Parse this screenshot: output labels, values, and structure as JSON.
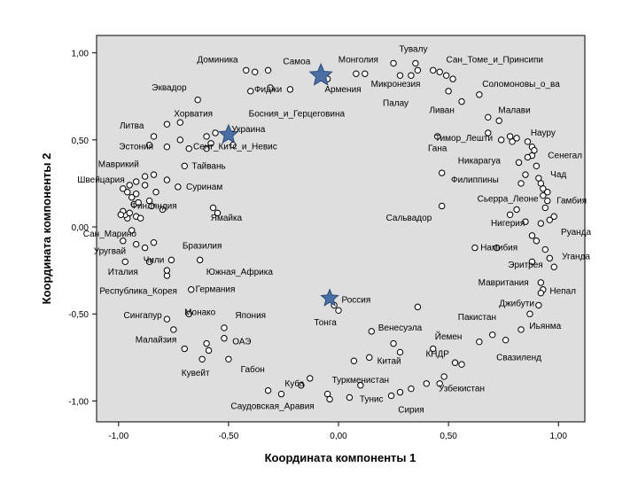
{
  "chart_data": {
    "type": "scatter",
    "title": "",
    "xlabel": "Координата компоненты 1",
    "ylabel": "Координата компоненты 2",
    "xlim": [
      -1.1,
      1.12
    ],
    "ylim": [
      -1.12,
      1.1
    ],
    "xticks": [
      -1.0,
      -0.5,
      0.0,
      0.5,
      1.0
    ],
    "yticks": [
      -1.0,
      -0.5,
      0.0,
      0.5,
      1.0
    ],
    "xtick_labels": [
      "-1,00",
      "-0,50",
      "0,00",
      "0,50",
      "1,00"
    ],
    "ytick_labels": [
      "-1,00",
      "-0,50",
      "0,00",
      "0,50",
      "1,00"
    ],
    "grid": false,
    "colors": {
      "plot_background": "#dedede",
      "marker_stroke": "#000000",
      "marker_fill": "#ffffff",
      "star_fill": "#4a6fa5",
      "star_stroke": "#2b4a78"
    },
    "highlighted": [
      {
        "label": "Армения",
        "x": -0.08,
        "y": 0.87
      },
      {
        "label": "Украина",
        "x": -0.5,
        "y": 0.53
      },
      {
        "label": "Россия",
        "x": -0.04,
        "y": -0.41
      }
    ],
    "labels": [
      {
        "text": "Тувалу",
        "x": 0.34,
        "y": 1.02
      },
      {
        "text": "Монголия",
        "x": 0.09,
        "y": 0.96
      },
      {
        "text": "Самоа",
        "x": -0.19,
        "y": 0.95
      },
      {
        "text": "Доминика",
        "x": -0.55,
        "y": 0.96
      },
      {
        "text": "Сан_Томе_и_Принсипи",
        "x": 0.71,
        "y": 0.96
      },
      {
        "text": "Микронезия",
        "x": 0.26,
        "y": 0.82
      },
      {
        "text": "Соломоновы_о_ва",
        "x": 0.83,
        "y": 0.82
      },
      {
        "text": "Эквадор",
        "x": -0.77,
        "y": 0.8
      },
      {
        "text": "Фиджи",
        "x": -0.32,
        "y": 0.79
      },
      {
        "text": "Армения",
        "x": 0.02,
        "y": 0.79
      },
      {
        "text": "Палау",
        "x": 0.26,
        "y": 0.71
      },
      {
        "text": "Хорватия",
        "x": -0.66,
        "y": 0.65
      },
      {
        "text": "Босния_и_Герцеговина",
        "x": -0.19,
        "y": 0.65
      },
      {
        "text": "Ливан",
        "x": 0.47,
        "y": 0.67
      },
      {
        "text": "Малави",
        "x": 0.8,
        "y": 0.67
      },
      {
        "text": "Литва",
        "x": -0.94,
        "y": 0.58
      },
      {
        "text": "Украина",
        "x": -0.41,
        "y": 0.56
      },
      {
        "text": "Науру",
        "x": 0.93,
        "y": 0.54
      },
      {
        "text": "Тимор_Лешти",
        "x": 0.57,
        "y": 0.51
      },
      {
        "text": "Эстония",
        "x": -0.92,
        "y": 0.46
      },
      {
        "text": "Сент_Китс_и_Невис",
        "x": -0.47,
        "y": 0.46
      },
      {
        "text": "Гана",
        "x": 0.45,
        "y": 0.45
      },
      {
        "text": "Сенегал",
        "x": 1.03,
        "y": 0.41
      },
      {
        "text": "Никарагуа",
        "x": 0.64,
        "y": 0.38
      },
      {
        "text": "Маврикий",
        "x": -1.0,
        "y": 0.36
      },
      {
        "text": "Тайвань",
        "x": -0.59,
        "y": 0.35
      },
      {
        "text": "Чад",
        "x": 1.0,
        "y": 0.3
      },
      {
        "text": "Швейцария",
        "x": -1.08,
        "y": 0.27
      },
      {
        "text": "Филиппины",
        "x": 0.62,
        "y": 0.27
      },
      {
        "text": "Суринам",
        "x": -0.61,
        "y": 0.23
      },
      {
        "text": "Сьерра_Леоне",
        "x": 0.77,
        "y": 0.16
      },
      {
        "text": "Гамбия",
        "x": 1.06,
        "y": 0.15
      },
      {
        "text": "Финляндия",
        "x": -0.84,
        "y": 0.12
      },
      {
        "text": "Ямайка",
        "x": -0.51,
        "y": 0.05
      },
      {
        "text": "Сальвадор",
        "x": 0.32,
        "y": 0.05
      },
      {
        "text": "Нигерия",
        "x": 0.77,
        "y": 0.02
      },
      {
        "text": "Руанда",
        "x": 1.08,
        "y": -0.03
      },
      {
        "text": "Сан_Марино",
        "x": -1.04,
        "y": -0.04
      },
      {
        "text": "Бразилия",
        "x": -0.62,
        "y": -0.11
      },
      {
        "text": "Намибия",
        "x": 0.73,
        "y": -0.12
      },
      {
        "text": "Уругвай",
        "x": -1.04,
        "y": -0.14
      },
      {
        "text": "Чили",
        "x": -0.84,
        "y": -0.19
      },
      {
        "text": "Уганда",
        "x": 1.08,
        "y": -0.17
      },
      {
        "text": "Эритрея",
        "x": 0.85,
        "y": -0.22
      },
      {
        "text": "Италия",
        "x": -0.98,
        "y": -0.26
      },
      {
        "text": "Южная_Африка",
        "x": -0.45,
        "y": -0.26
      },
      {
        "text": "Мавритания",
        "x": 0.75,
        "y": -0.32
      },
      {
        "text": "Республика_Корея",
        "x": -0.91,
        "y": -0.37
      },
      {
        "text": "Германия",
        "x": -0.56,
        "y": -0.36
      },
      {
        "text": "Непал",
        "x": 1.02,
        "y": -0.37
      },
      {
        "text": "Россия",
        "x": 0.08,
        "y": -0.42
      },
      {
        "text": "Джибути",
        "x": 0.81,
        "y": -0.44
      },
      {
        "text": "Монако",
        "x": -0.63,
        "y": -0.49
      },
      {
        "text": "Сингапур",
        "x": -0.89,
        "y": -0.51
      },
      {
        "text": "Япония",
        "x": -0.4,
        "y": -0.51
      },
      {
        "text": "Пакистан",
        "x": 0.63,
        "y": -0.52
      },
      {
        "text": "Тонга",
        "x": -0.06,
        "y": -0.55
      },
      {
        "text": "Венесуэла",
        "x": 0.28,
        "y": -0.58
      },
      {
        "text": "Иьянма",
        "x": 0.94,
        "y": -0.57
      },
      {
        "text": "Малайзия",
        "x": -0.83,
        "y": -0.65
      },
      {
        "text": "ОАЭ",
        "x": -0.44,
        "y": -0.66
      },
      {
        "text": "Йемен",
        "x": 0.5,
        "y": -0.63
      },
      {
        "text": "КНДР",
        "x": 0.45,
        "y": -0.73
      },
      {
        "text": "Китай",
        "x": 0.23,
        "y": -0.77
      },
      {
        "text": "Свазиленд",
        "x": 0.82,
        "y": -0.75
      },
      {
        "text": "Кувейт",
        "x": -0.65,
        "y": -0.84
      },
      {
        "text": "Габон",
        "x": -0.39,
        "y": -0.82
      },
      {
        "text": "Туркменистан",
        "x": 0.1,
        "y": -0.88
      },
      {
        "text": "Узбекистан",
        "x": 0.56,
        "y": -0.93
      },
      {
        "text": "Куба",
        "x": -0.2,
        "y": -0.9
      },
      {
        "text": "Тунис",
        "x": 0.15,
        "y": -0.99
      },
      {
        "text": "Саудовская_Аравия",
        "x": -0.3,
        "y": -1.03
      },
      {
        "text": "Сирия",
        "x": 0.33,
        "y": -1.05
      }
    ],
    "points": [
      [
        -0.42,
        0.9
      ],
      [
        -0.38,
        0.89
      ],
      [
        -0.4,
        0.78
      ],
      [
        -0.22,
        0.79
      ],
      [
        -0.32,
        0.9
      ],
      [
        -0.05,
        0.85
      ],
      [
        0.08,
        0.88
      ],
      [
        0.12,
        0.88
      ],
      [
        0.25,
        0.94
      ],
      [
        0.35,
        0.94
      ],
      [
        0.36,
        0.9
      ],
      [
        0.33,
        0.87
      ],
      [
        0.28,
        0.87
      ],
      [
        0.43,
        0.9
      ],
      [
        0.46,
        0.89
      ],
      [
        0.49,
        0.87
      ],
      [
        0.52,
        0.85
      ],
      [
        0.5,
        0.78
      ],
      [
        0.56,
        0.72
      ],
      [
        0.64,
        0.76
      ],
      [
        0.68,
        0.63
      ],
      [
        0.73,
        0.61
      ],
      [
        0.68,
        0.54
      ],
      [
        0.74,
        0.5
      ],
      [
        0.79,
        0.49
      ],
      [
        0.86,
        0.49
      ],
      [
        0.88,
        0.46
      ],
      [
        0.89,
        0.44
      ],
      [
        0.88,
        0.41
      ],
      [
        0.86,
        0.4
      ],
      [
        0.9,
        0.35
      ],
      [
        0.91,
        0.28
      ],
      [
        0.92,
        0.25
      ],
      [
        0.93,
        0.22
      ],
      [
        0.95,
        0.2
      ],
      [
        0.93,
        0.18
      ],
      [
        0.95,
        0.15
      ],
      [
        0.94,
        0.11
      ],
      [
        0.98,
        0.06
      ],
      [
        0.96,
        0.04
      ],
      [
        0.92,
        0.02
      ],
      [
        0.9,
        -0.08
      ],
      [
        0.94,
        -0.13
      ],
      [
        0.96,
        -0.18
      ],
      [
        0.98,
        -0.23
      ],
      [
        0.92,
        -0.32
      ],
      [
        0.93,
        -0.36
      ],
      [
        0.92,
        -0.38
      ],
      [
        0.91,
        -0.45
      ],
      [
        0.87,
        -0.5
      ],
      [
        0.83,
        -0.59
      ],
      [
        0.76,
        -0.65
      ],
      [
        0.7,
        -0.62
      ],
      [
        0.64,
        -0.66
      ],
      [
        0.56,
        -0.79
      ],
      [
        0.53,
        -0.78
      ],
      [
        0.48,
        -0.86
      ],
      [
        0.46,
        -0.9
      ],
      [
        0.4,
        -0.9
      ],
      [
        0.33,
        -0.93
      ],
      [
        0.28,
        -0.95
      ],
      [
        0.24,
        -0.97
      ],
      [
        0.1,
        -0.91
      ],
      [
        0.05,
        -0.98
      ],
      [
        -0.05,
        -0.96
      ],
      [
        -0.04,
        -0.99
      ],
      [
        -0.13,
        -0.87
      ],
      [
        -0.17,
        -0.91
      ],
      [
        -0.26,
        -0.96
      ],
      [
        -0.32,
        -0.94
      ],
      [
        -0.5,
        -0.76
      ],
      [
        -0.59,
        -0.71
      ],
      [
        -0.62,
        -0.76
      ],
      [
        -0.6,
        -0.67
      ],
      [
        -0.52,
        -0.64
      ],
      [
        -0.52,
        -0.58
      ],
      [
        -0.7,
        -0.7
      ],
      [
        -0.75,
        -0.59
      ],
      [
        -0.78,
        -0.53
      ],
      [
        -0.68,
        -0.5
      ],
      [
        -0.67,
        -0.36
      ],
      [
        -0.78,
        -0.28
      ],
      [
        -0.78,
        -0.25
      ],
      [
        -0.76,
        -0.19
      ],
      [
        -0.63,
        -0.19
      ],
      [
        -0.86,
        -0.2
      ],
      [
        -0.88,
        -0.12
      ],
      [
        -0.97,
        -0.2
      ],
      [
        -0.98,
        -0.08
      ],
      [
        -0.92,
        -0.1
      ],
      [
        -0.84,
        -0.09
      ],
      [
        -0.94,
        -0.02
      ],
      [
        -0.96,
        0.05
      ],
      [
        -0.97,
        0.07
      ],
      [
        -0.98,
        0.09
      ],
      [
        -0.99,
        0.07
      ],
      [
        -0.95,
        0.08
      ],
      [
        -0.92,
        0.06
      ],
      [
        -0.9,
        0.05
      ],
      [
        -0.93,
        0.13
      ],
      [
        -0.94,
        0.17
      ],
      [
        -0.92,
        0.19
      ],
      [
        -0.96,
        0.2
      ],
      [
        -0.98,
        0.22
      ],
      [
        -0.95,
        0.24
      ],
      [
        -0.92,
        0.26
      ],
      [
        -0.88,
        0.29
      ],
      [
        -0.84,
        0.3
      ],
      [
        -0.88,
        0.24
      ],
      [
        -0.83,
        0.2
      ],
      [
        -0.86,
        0.15
      ],
      [
        -0.91,
        0.14
      ],
      [
        -0.73,
        0.23
      ],
      [
        -0.78,
        0.27
      ],
      [
        -0.7,
        0.35
      ],
      [
        -0.78,
        0.46
      ],
      [
        -0.72,
        0.5
      ],
      [
        -0.68,
        0.45
      ],
      [
        -0.84,
        0.52
      ],
      [
        -0.86,
        0.47
      ],
      [
        -0.78,
        0.59
      ],
      [
        -0.72,
        0.6
      ],
      [
        -0.64,
        0.73
      ],
      [
        -0.56,
        0.54
      ],
      [
        -0.48,
        0.47
      ],
      [
        -0.58,
        0.48
      ],
      [
        -0.6,
        0.52
      ],
      [
        -0.6,
        0.45
      ],
      [
        -0.55,
        0.08
      ],
      [
        -0.57,
        0.11
      ],
      [
        -0.8,
        0.1
      ],
      [
        -0.85,
        0.12
      ],
      [
        0.45,
        0.52
      ],
      [
        0.47,
        0.31
      ],
      [
        0.47,
        0.12
      ],
      [
        0.78,
        0.52
      ],
      [
        0.81,
        0.51
      ],
      [
        0.82,
        0.37
      ],
      [
        0.85,
        0.3
      ],
      [
        0.83,
        0.25
      ],
      [
        0.81,
        0.1
      ],
      [
        0.78,
        0.07
      ],
      [
        0.85,
        0.03
      ],
      [
        0.88,
        -0.05
      ],
      [
        0.88,
        -0.2
      ],
      [
        0.72,
        -0.12
      ],
      [
        0.62,
        -0.12
      ],
      [
        0.15,
        -0.6
      ],
      [
        0.25,
        -0.67
      ],
      [
        0.28,
        -0.72
      ],
      [
        0.14,
        -0.75
      ],
      [
        0.07,
        -0.77
      ],
      [
        -0.02,
        -0.45
      ],
      [
        0.0,
        -0.48
      ],
      [
        -0.31,
        0.8
      ],
      [
        0.36,
        -0.46
      ],
      [
        0.43,
        -0.7
      ]
    ]
  }
}
